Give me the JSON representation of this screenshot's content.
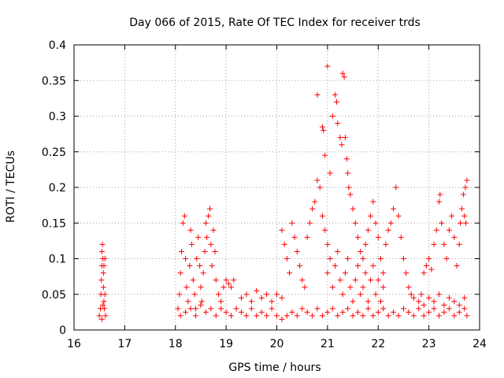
{
  "chart_data": {
    "type": "scatter",
    "title": "Day 066 of 2015, Rate Of TEC Index for receiver trds",
    "xlabel": "GPS time / hours",
    "ylabel": "ROTI / TECUs",
    "xlim": [
      16,
      24
    ],
    "ylim": [
      0,
      0.4
    ],
    "xticks": [
      16,
      17,
      18,
      19,
      20,
      21,
      22,
      23,
      24
    ],
    "yticks": [
      0,
      0.05,
      0.1,
      0.15,
      0.2,
      0.25,
      0.3,
      0.35,
      0.4
    ],
    "ytick_labels": [
      "0",
      "0.05",
      "0.1",
      "0.15",
      "0.2",
      "0.25",
      "0.3",
      "0.35",
      "0.4"
    ],
    "grid": true,
    "marker": "+",
    "color": "#ff0000",
    "series": [
      {
        "name": "ROTI",
        "points": [
          [
            16.5,
            0.02
          ],
          [
            16.52,
            0.03
          ],
          [
            16.53,
            0.05
          ],
          [
            16.54,
            0.07
          ],
          [
            16.55,
            0.09
          ],
          [
            16.55,
            0.11
          ],
          [
            16.56,
            0.12
          ],
          [
            16.57,
            0.1
          ],
          [
            16.58,
            0.08
          ],
          [
            16.58,
            0.06
          ],
          [
            16.59,
            0.04
          ],
          [
            16.6,
            0.03
          ],
          [
            16.61,
            0.05
          ],
          [
            16.61,
            0.1
          ],
          [
            16.62,
            0.02
          ],
          [
            16.55,
            0.015
          ],
          [
            16.57,
            0.035
          ],
          [
            16.59,
            0.09
          ],
          [
            18.05,
            0.03
          ],
          [
            18.08,
            0.05
          ],
          [
            18.1,
            0.08
          ],
          [
            18.12,
            0.11
          ],
          [
            18.15,
            0.15
          ],
          [
            18.18,
            0.16
          ],
          [
            18.2,
            0.1
          ],
          [
            18.22,
            0.06
          ],
          [
            18.25,
            0.04
          ],
          [
            18.28,
            0.09
          ],
          [
            18.3,
            0.14
          ],
          [
            18.32,
            0.12
          ],
          [
            18.35,
            0.07
          ],
          [
            18.38,
            0.05
          ],
          [
            18.4,
            0.03
          ],
          [
            18.42,
            0.1
          ],
          [
            18.45,
            0.13
          ],
          [
            18.48,
            0.09
          ],
          [
            18.5,
            0.06
          ],
          [
            18.52,
            0.04
          ],
          [
            18.55,
            0.08
          ],
          [
            18.58,
            0.11
          ],
          [
            18.6,
            0.15
          ],
          [
            18.62,
            0.13
          ],
          [
            18.65,
            0.16
          ],
          [
            18.68,
            0.17
          ],
          [
            18.7,
            0.12
          ],
          [
            18.72,
            0.09
          ],
          [
            18.75,
            0.14
          ],
          [
            18.78,
            0.11
          ],
          [
            18.8,
            0.07
          ],
          [
            18.85,
            0.05
          ],
          [
            18.9,
            0.04
          ],
          [
            18.95,
            0.06
          ],
          [
            19.0,
            0.07
          ],
          [
            19.05,
            0.065
          ],
          [
            19.1,
            0.06
          ],
          [
            19.15,
            0.07
          ],
          [
            18.1,
            0.02
          ],
          [
            18.2,
            0.025
          ],
          [
            18.3,
            0.03
          ],
          [
            18.4,
            0.02
          ],
          [
            18.5,
            0.035
          ],
          [
            18.6,
            0.025
          ],
          [
            18.7,
            0.03
          ],
          [
            18.8,
            0.02
          ],
          [
            18.9,
            0.03
          ],
          [
            19.0,
            0.025
          ],
          [
            19.1,
            0.02
          ],
          [
            19.2,
            0.03
          ],
          [
            19.3,
            0.025
          ],
          [
            19.4,
            0.02
          ],
          [
            19.5,
            0.03
          ],
          [
            19.6,
            0.02
          ],
          [
            19.7,
            0.025
          ],
          [
            19.8,
            0.02
          ],
          [
            19.9,
            0.03
          ],
          [
            20.0,
            0.02
          ],
          [
            20.1,
            0.015
          ],
          [
            20.2,
            0.02
          ],
          [
            20.3,
            0.025
          ],
          [
            20.4,
            0.02
          ],
          [
            20.5,
            0.03
          ],
          [
            20.6,
            0.025
          ],
          [
            20.7,
            0.02
          ],
          [
            20.8,
            0.03
          ],
          [
            20.9,
            0.02
          ],
          [
            21.0,
            0.025
          ],
          [
            21.1,
            0.03
          ],
          [
            21.2,
            0.02
          ],
          [
            21.3,
            0.025
          ],
          [
            21.4,
            0.03
          ],
          [
            21.5,
            0.02
          ],
          [
            21.6,
            0.025
          ],
          [
            21.7,
            0.02
          ],
          [
            21.8,
            0.03
          ],
          [
            21.9,
            0.02
          ],
          [
            22.0,
            0.025
          ],
          [
            22.1,
            0.03
          ],
          [
            22.2,
            0.02
          ],
          [
            22.3,
            0.025
          ],
          [
            22.4,
            0.02
          ],
          [
            22.5,
            0.03
          ],
          [
            22.6,
            0.025
          ],
          [
            22.7,
            0.02
          ],
          [
            22.8,
            0.03
          ],
          [
            22.9,
            0.02
          ],
          [
            23.0,
            0.025
          ],
          [
            23.1,
            0.03
          ],
          [
            23.2,
            0.02
          ],
          [
            23.3,
            0.025
          ],
          [
            23.4,
            0.03
          ],
          [
            23.5,
            0.02
          ],
          [
            23.6,
            0.025
          ],
          [
            23.7,
            0.03
          ],
          [
            23.75,
            0.02
          ],
          [
            19.3,
            0.045
          ],
          [
            19.4,
            0.05
          ],
          [
            19.5,
            0.04
          ],
          [
            19.6,
            0.055
          ],
          [
            19.7,
            0.045
          ],
          [
            19.8,
            0.05
          ],
          [
            19.9,
            0.04
          ],
          [
            20.0,
            0.05
          ],
          [
            20.1,
            0.045
          ],
          [
            20.1,
            0.14
          ],
          [
            20.15,
            0.12
          ],
          [
            20.2,
            0.1
          ],
          [
            20.25,
            0.08
          ],
          [
            20.3,
            0.15
          ],
          [
            20.35,
            0.13
          ],
          [
            20.4,
            0.11
          ],
          [
            20.45,
            0.09
          ],
          [
            20.5,
            0.07
          ],
          [
            20.55,
            0.06
          ],
          [
            20.6,
            0.13
          ],
          [
            20.65,
            0.15
          ],
          [
            20.7,
            0.17
          ],
          [
            20.75,
            0.18
          ],
          [
            20.8,
            0.21
          ],
          [
            20.85,
            0.2
          ],
          [
            20.9,
            0.16
          ],
          [
            20.95,
            0.14
          ],
          [
            21.0,
            0.12
          ],
          [
            20.8,
            0.33
          ],
          [
            20.9,
            0.285
          ],
          [
            20.92,
            0.28
          ],
          [
            20.95,
            0.245
          ],
          [
            21.0,
            0.37
          ],
          [
            21.05,
            0.22
          ],
          [
            21.1,
            0.3
          ],
          [
            21.15,
            0.33
          ],
          [
            21.18,
            0.32
          ],
          [
            21.2,
            0.29
          ],
          [
            21.25,
            0.27
          ],
          [
            21.28,
            0.26
          ],
          [
            21.3,
            0.36
          ],
          [
            21.33,
            0.355
          ],
          [
            21.35,
            0.27
          ],
          [
            21.38,
            0.24
          ],
          [
            21.4,
            0.22
          ],
          [
            21.42,
            0.2
          ],
          [
            21.45,
            0.19
          ],
          [
            21.5,
            0.17
          ],
          [
            21.55,
            0.15
          ],
          [
            21.6,
            0.13
          ],
          [
            21.65,
            0.11
          ],
          [
            21.7,
            0.1
          ],
          [
            21.75,
            0.12
          ],
          [
            21.8,
            0.14
          ],
          [
            21.85,
            0.16
          ],
          [
            21.9,
            0.18
          ],
          [
            21.95,
            0.15
          ],
          [
            22.0,
            0.13
          ],
          [
            22.05,
            0.1
          ],
          [
            22.1,
            0.08
          ],
          [
            22.15,
            0.12
          ],
          [
            22.2,
            0.14
          ],
          [
            22.25,
            0.15
          ],
          [
            22.3,
            0.17
          ],
          [
            22.35,
            0.2
          ],
          [
            22.4,
            0.16
          ],
          [
            22.45,
            0.13
          ],
          [
            22.5,
            0.1
          ],
          [
            22.55,
            0.08
          ],
          [
            22.6,
            0.06
          ],
          [
            22.65,
            0.05
          ],
          [
            22.7,
            0.045
          ],
          [
            21.0,
            0.08
          ],
          [
            21.05,
            0.1
          ],
          [
            21.1,
            0.06
          ],
          [
            21.15,
            0.09
          ],
          [
            21.2,
            0.11
          ],
          [
            21.25,
            0.07
          ],
          [
            21.3,
            0.05
          ],
          [
            21.35,
            0.08
          ],
          [
            21.4,
            0.1
          ],
          [
            21.45,
            0.06
          ],
          [
            21.5,
            0.04
          ],
          [
            21.55,
            0.07
          ],
          [
            21.6,
            0.09
          ],
          [
            21.65,
            0.05
          ],
          [
            21.7,
            0.06
          ],
          [
            21.75,
            0.08
          ],
          [
            21.8,
            0.04
          ],
          [
            21.85,
            0.07
          ],
          [
            21.9,
            0.09
          ],
          [
            21.95,
            0.05
          ],
          [
            22.0,
            0.07
          ],
          [
            22.05,
            0.04
          ],
          [
            22.1,
            0.06
          ],
          [
            22.9,
            0.08
          ],
          [
            22.95,
            0.09
          ],
          [
            23.0,
            0.1
          ],
          [
            23.05,
            0.085
          ],
          [
            23.1,
            0.12
          ],
          [
            23.15,
            0.14
          ],
          [
            23.2,
            0.18
          ],
          [
            23.22,
            0.19
          ],
          [
            23.25,
            0.15
          ],
          [
            23.3,
            0.12
          ],
          [
            23.35,
            0.1
          ],
          [
            23.4,
            0.14
          ],
          [
            23.45,
            0.16
          ],
          [
            23.5,
            0.13
          ],
          [
            23.55,
            0.09
          ],
          [
            23.6,
            0.12
          ],
          [
            23.62,
            0.15
          ],
          [
            23.65,
            0.17
          ],
          [
            23.68,
            0.19
          ],
          [
            23.7,
            0.16
          ],
          [
            23.72,
            0.2
          ],
          [
            23.75,
            0.21
          ],
          [
            23.73,
            0.15
          ],
          [
            22.8,
            0.04
          ],
          [
            22.85,
            0.05
          ],
          [
            22.9,
            0.035
          ],
          [
            23.0,
            0.045
          ],
          [
            23.1,
            0.04
          ],
          [
            23.2,
            0.05
          ],
          [
            23.3,
            0.035
          ],
          [
            23.4,
            0.045
          ],
          [
            23.5,
            0.04
          ],
          [
            23.6,
            0.035
          ],
          [
            23.7,
            0.045
          ]
        ]
      }
    ]
  }
}
